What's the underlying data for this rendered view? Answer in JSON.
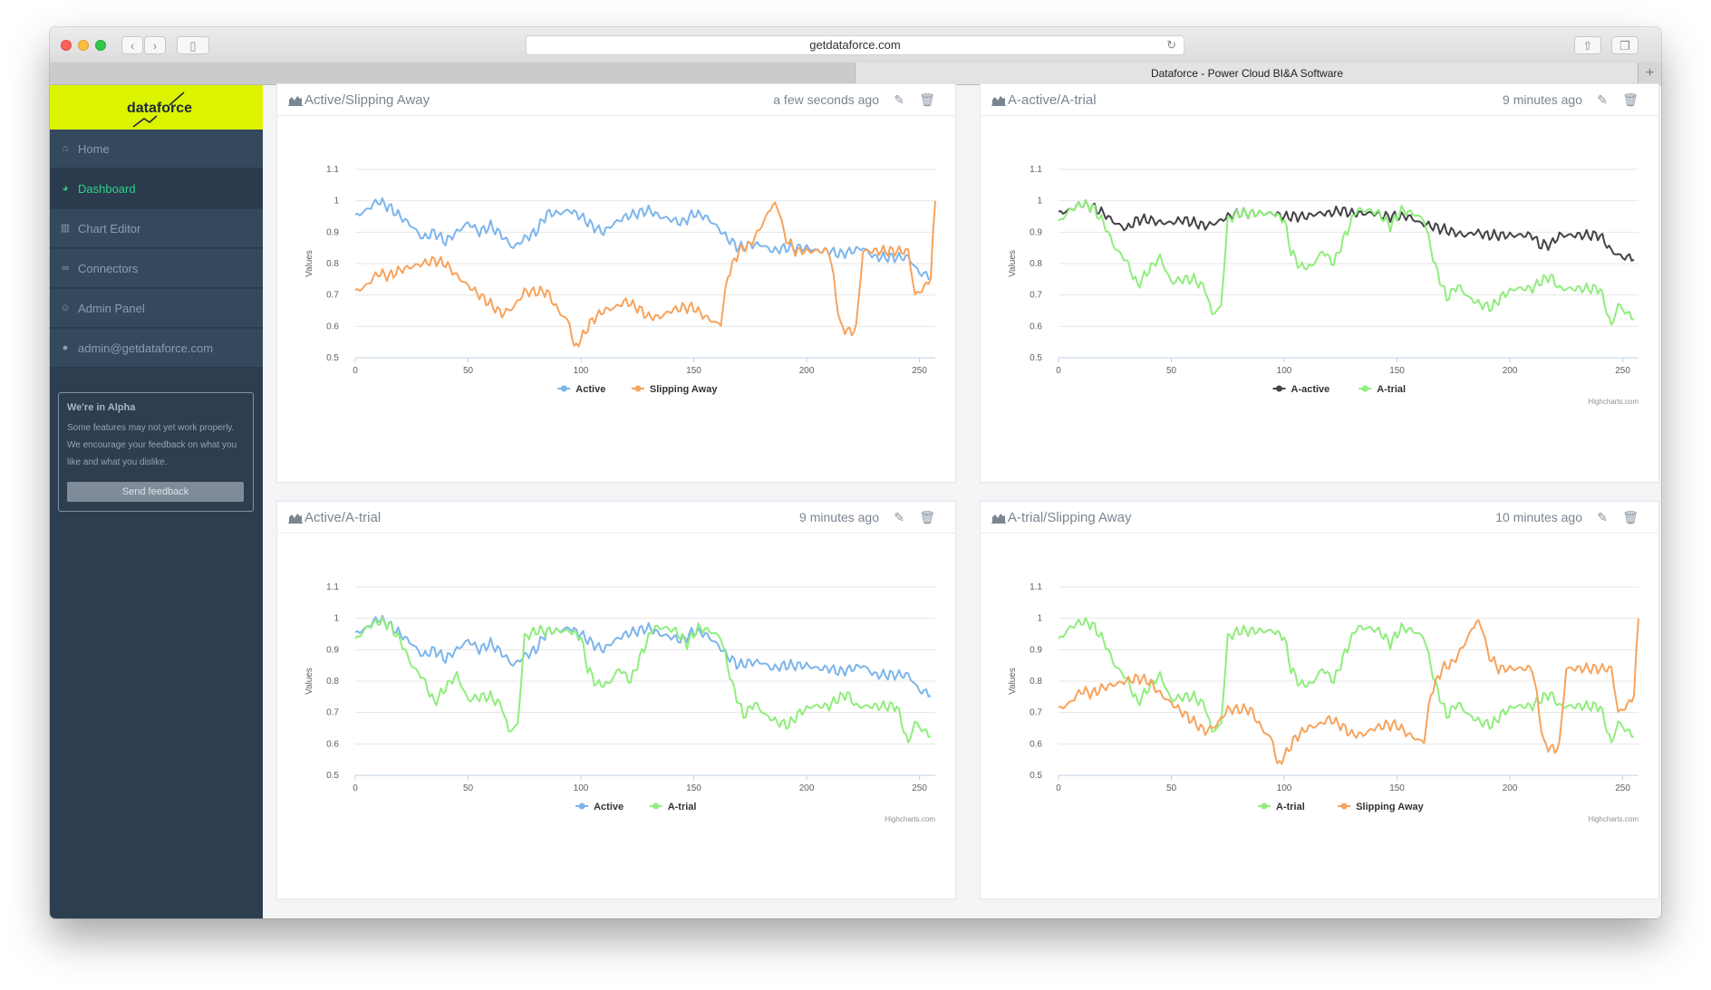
{
  "browser": {
    "url": "getdataforce.com",
    "tab_title": "Dataforce - Power Cloud BI&A Software",
    "new_tab_glyph": "+"
  },
  "sidebar": {
    "logo_text": "dataforce",
    "items": [
      {
        "label": "Home",
        "icon": "home-icon",
        "glyph": "⌂"
      },
      {
        "label": "Dashboard",
        "icon": "dashboard-icon",
        "glyph": "◕",
        "active": true
      },
      {
        "label": "Chart Editor",
        "icon": "bar-chart-icon",
        "glyph": "▥"
      },
      {
        "label": "Connectors",
        "icon": "link-icon",
        "glyph": "∞"
      },
      {
        "label": "Admin Panel",
        "icon": "admin-icon",
        "glyph": "☺"
      },
      {
        "label": "admin@getdataforce.com",
        "icon": "user-icon",
        "glyph": "●"
      }
    ],
    "alpha": {
      "title": "We're in Alpha",
      "body": "Some features may not yet work properly. We encourage your feedback on what you like and what you dislike.",
      "button": "Send feedback"
    }
  },
  "colors": {
    "active": "#7cb5ec",
    "slipping_away": "#f7a35c",
    "a_active": "#434348",
    "a_trial": "#90ed7d",
    "accent": "#dcf400",
    "sidebar_bg": "#2d3e50"
  },
  "cards": [
    {
      "title": "Active/Slipping Away",
      "time": "a few seconds ago",
      "credit": "",
      "legend": [
        {
          "name": "Active",
          "color": "#7cb5ec"
        },
        {
          "name": "Slipping Away",
          "color": "#f7a35c"
        }
      ]
    },
    {
      "title": "A-active/A-trial",
      "time": "9 minutes ago",
      "credit": "Highcharts.com",
      "legend": [
        {
          "name": "A-active",
          "color": "#434348"
        },
        {
          "name": "A-trial",
          "color": "#90ed7d"
        }
      ]
    },
    {
      "title": "Active/A-trial",
      "time": "9 minutes ago",
      "credit": "Highcharts.com",
      "legend": [
        {
          "name": "Active",
          "color": "#7cb5ec"
        },
        {
          "name": "A-trial",
          "color": "#90ed7d"
        }
      ]
    },
    {
      "title": "A-trial/Slipping Away",
      "time": "10 minutes ago",
      "credit": "Highcharts.com",
      "legend": [
        {
          "name": "A-trial",
          "color": "#90ed7d"
        },
        {
          "name": "Slipping Away",
          "color": "#f7a35c"
        }
      ]
    }
  ],
  "series_keyframes": {
    "Active": [
      [
        0,
        0.95
      ],
      [
        5,
        0.97
      ],
      [
        10,
        1.0
      ],
      [
        15,
        0.98
      ],
      [
        20,
        0.95
      ],
      [
        25,
        0.92
      ],
      [
        30,
        0.88
      ],
      [
        35,
        0.9
      ],
      [
        40,
        0.87
      ],
      [
        45,
        0.9
      ],
      [
        50,
        0.93
      ],
      [
        55,
        0.9
      ],
      [
        60,
        0.92
      ],
      [
        65,
        0.89
      ],
      [
        70,
        0.85
      ],
      [
        75,
        0.88
      ],
      [
        80,
        0.9
      ],
      [
        85,
        0.96
      ],
      [
        90,
        0.96
      ],
      [
        95,
        0.97
      ],
      [
        100,
        0.95
      ],
      [
        105,
        0.92
      ],
      [
        110,
        0.9
      ],
      [
        115,
        0.93
      ],
      [
        120,
        0.95
      ],
      [
        125,
        0.96
      ],
      [
        130,
        0.97
      ],
      [
        135,
        0.95
      ],
      [
        140,
        0.94
      ],
      [
        145,
        0.93
      ],
      [
        150,
        0.96
      ],
      [
        155,
        0.95
      ],
      [
        160,
        0.92
      ],
      [
        165,
        0.88
      ],
      [
        170,
        0.85
      ],
      [
        175,
        0.86
      ],
      [
        180,
        0.86
      ],
      [
        185,
        0.84
      ],
      [
        190,
        0.85
      ],
      [
        195,
        0.85
      ],
      [
        200,
        0.85
      ],
      [
        205,
        0.84
      ],
      [
        210,
        0.84
      ],
      [
        215,
        0.83
      ],
      [
        220,
        0.84
      ],
      [
        225,
        0.85
      ],
      [
        230,
        0.82
      ],
      [
        235,
        0.82
      ],
      [
        240,
        0.82
      ],
      [
        245,
        0.82
      ],
      [
        250,
        0.77
      ],
      [
        255,
        0.76
      ]
    ],
    "Slipping Away": [
      [
        0,
        0.71
      ],
      [
        5,
        0.73
      ],
      [
        10,
        0.77
      ],
      [
        15,
        0.76
      ],
      [
        20,
        0.78
      ],
      [
        25,
        0.79
      ],
      [
        30,
        0.8
      ],
      [
        35,
        0.81
      ],
      [
        40,
        0.8
      ],
      [
        45,
        0.76
      ],
      [
        50,
        0.73
      ],
      [
        55,
        0.7
      ],
      [
        60,
        0.67
      ],
      [
        65,
        0.64
      ],
      [
        70,
        0.66
      ],
      [
        75,
        0.71
      ],
      [
        80,
        0.71
      ],
      [
        85,
        0.71
      ],
      [
        90,
        0.65
      ],
      [
        95,
        0.61
      ],
      [
        97,
        0.53
      ],
      [
        100,
        0.56
      ],
      [
        105,
        0.62
      ],
      [
        110,
        0.65
      ],
      [
        115,
        0.66
      ],
      [
        120,
        0.68
      ],
      [
        125,
        0.66
      ],
      [
        130,
        0.63
      ],
      [
        135,
        0.63
      ],
      [
        140,
        0.65
      ],
      [
        145,
        0.66
      ],
      [
        150,
        0.66
      ],
      [
        155,
        0.63
      ],
      [
        160,
        0.61
      ],
      [
        162,
        0.61
      ],
      [
        165,
        0.76
      ],
      [
        170,
        0.84
      ],
      [
        175,
        0.86
      ],
      [
        180,
        0.92
      ],
      [
        185,
        0.99
      ],
      [
        188,
        0.97
      ],
      [
        190,
        0.89
      ],
      [
        195,
        0.84
      ],
      [
        200,
        0.84
      ],
      [
        210,
        0.84
      ],
      [
        212,
        0.75
      ],
      [
        215,
        0.6
      ],
      [
        220,
        0.58
      ],
      [
        222,
        0.6
      ],
      [
        225,
        0.84
      ],
      [
        230,
        0.84
      ],
      [
        240,
        0.84
      ],
      [
        245,
        0.84
      ],
      [
        248,
        0.7
      ],
      [
        250,
        0.71
      ],
      [
        253,
        0.73
      ],
      [
        255,
        0.76
      ],
      [
        257,
        1.0
      ]
    ],
    "A-active": [
      [
        0,
        0.96
      ],
      [
        5,
        0.97
      ],
      [
        10,
        0.99
      ],
      [
        15,
        0.98
      ],
      [
        20,
        0.96
      ],
      [
        25,
        0.93
      ],
      [
        30,
        0.91
      ],
      [
        35,
        0.94
      ],
      [
        40,
        0.94
      ],
      [
        45,
        0.93
      ],
      [
        50,
        0.93
      ],
      [
        55,
        0.94
      ],
      [
        60,
        0.93
      ],
      [
        65,
        0.92
      ],
      [
        70,
        0.93
      ],
      [
        75,
        0.95
      ],
      [
        80,
        0.96
      ],
      [
        90,
        0.96
      ],
      [
        95,
        0.96
      ],
      [
        100,
        0.95
      ],
      [
        105,
        0.95
      ],
      [
        110,
        0.95
      ],
      [
        115,
        0.96
      ],
      [
        120,
        0.96
      ],
      [
        125,
        0.97
      ],
      [
        130,
        0.96
      ],
      [
        135,
        0.96
      ],
      [
        140,
        0.96
      ],
      [
        145,
        0.95
      ],
      [
        150,
        0.95
      ],
      [
        155,
        0.95
      ],
      [
        160,
        0.93
      ],
      [
        165,
        0.92
      ],
      [
        170,
        0.91
      ],
      [
        175,
        0.9
      ],
      [
        180,
        0.89
      ],
      [
        185,
        0.9
      ],
      [
        190,
        0.89
      ],
      [
        195,
        0.89
      ],
      [
        200,
        0.89
      ],
      [
        210,
        0.89
      ],
      [
        213,
        0.86
      ],
      [
        218,
        0.86
      ],
      [
        222,
        0.89
      ],
      [
        230,
        0.89
      ],
      [
        240,
        0.89
      ],
      [
        245,
        0.84
      ],
      [
        250,
        0.82
      ],
      [
        255,
        0.82
      ]
    ],
    "A-trial": [
      [
        0,
        0.93
      ],
      [
        5,
        0.97
      ],
      [
        10,
        0.99
      ],
      [
        15,
        0.98
      ],
      [
        20,
        0.93
      ],
      [
        25,
        0.85
      ],
      [
        30,
        0.81
      ],
      [
        35,
        0.73
      ],
      [
        40,
        0.78
      ],
      [
        45,
        0.82
      ],
      [
        50,
        0.74
      ],
      [
        55,
        0.75
      ],
      [
        60,
        0.75
      ],
      [
        65,
        0.72
      ],
      [
        68,
        0.64
      ],
      [
        72,
        0.66
      ],
      [
        75,
        0.94
      ],
      [
        80,
        0.96
      ],
      [
        90,
        0.96
      ],
      [
        95,
        0.96
      ],
      [
        100,
        0.94
      ],
      [
        103,
        0.84
      ],
      [
        107,
        0.79
      ],
      [
        112,
        0.79
      ],
      [
        117,
        0.84
      ],
      [
        122,
        0.8
      ],
      [
        127,
        0.89
      ],
      [
        132,
        0.97
      ],
      [
        137,
        0.97
      ],
      [
        142,
        0.96
      ],
      [
        147,
        0.92
      ],
      [
        152,
        0.97
      ],
      [
        157,
        0.96
      ],
      [
        162,
        0.94
      ],
      [
        167,
        0.79
      ],
      [
        172,
        0.69
      ],
      [
        177,
        0.73
      ],
      [
        182,
        0.69
      ],
      [
        187,
        0.67
      ],
      [
        192,
        0.66
      ],
      [
        197,
        0.7
      ],
      [
        202,
        0.72
      ],
      [
        210,
        0.72
      ],
      [
        213,
        0.74
      ],
      [
        218,
        0.76
      ],
      [
        222,
        0.72
      ],
      [
        230,
        0.72
      ],
      [
        240,
        0.72
      ],
      [
        245,
        0.6
      ],
      [
        248,
        0.67
      ],
      [
        252,
        0.64
      ],
      [
        255,
        0.63
      ]
    ]
  },
  "chart_data": [
    {
      "type": "line",
      "title": "Active/Slipping Away",
      "xlabel": "",
      "ylabel": "Values",
      "xlim": [
        0,
        257
      ],
      "ylim": [
        0.5,
        1.1
      ],
      "x_ticks": [
        "0",
        "50",
        "100",
        "150",
        "200",
        "250"
      ],
      "y_ticks": [
        "0.5",
        "0.6",
        "0.7",
        "0.8",
        "0.9",
        "1",
        "1.1"
      ],
      "legend": "bottom-center",
      "grid": true,
      "series": [
        {
          "name": "Active",
          "key": "Active"
        },
        {
          "name": "Slipping Away",
          "key": "Slipping Away"
        }
      ]
    },
    {
      "type": "line",
      "title": "A-active/A-trial",
      "xlabel": "",
      "ylabel": "Values",
      "xlim": [
        0,
        257
      ],
      "ylim": [
        0.5,
        1.1
      ],
      "x_ticks": [
        "0",
        "50",
        "100",
        "150",
        "200",
        "250"
      ],
      "y_ticks": [
        "0.5",
        "0.6",
        "0.7",
        "0.8",
        "0.9",
        "1",
        "1.1"
      ],
      "legend": "bottom-center",
      "grid": true,
      "series": [
        {
          "name": "A-active",
          "key": "A-active"
        },
        {
          "name": "A-trial",
          "key": "A-trial"
        }
      ]
    },
    {
      "type": "line",
      "title": "Active/A-trial",
      "xlabel": "",
      "ylabel": "Values",
      "xlim": [
        0,
        257
      ],
      "ylim": [
        0.5,
        1.1
      ],
      "x_ticks": [
        "0",
        "50",
        "100",
        "150",
        "200",
        "250"
      ],
      "y_ticks": [
        "0.5",
        "0.6",
        "0.7",
        "0.8",
        "0.9",
        "1",
        "1.1"
      ],
      "legend": "bottom-center",
      "grid": true,
      "series": [
        {
          "name": "Active",
          "key": "Active"
        },
        {
          "name": "A-trial",
          "key": "A-trial"
        }
      ]
    },
    {
      "type": "line",
      "title": "A-trial/Slipping Away",
      "xlabel": "",
      "ylabel": "Values",
      "xlim": [
        0,
        257
      ],
      "ylim": [
        0.5,
        1.1
      ],
      "x_ticks": [
        "0",
        "50",
        "100",
        "150",
        "200",
        "250"
      ],
      "y_ticks": [
        "0.5",
        "0.6",
        "0.7",
        "0.8",
        "0.9",
        "1",
        "1.1"
      ],
      "legend": "bottom-center",
      "grid": true,
      "series": [
        {
          "name": "A-trial",
          "key": "A-trial"
        },
        {
          "name": "Slipping Away",
          "key": "Slipping Away"
        }
      ]
    }
  ]
}
